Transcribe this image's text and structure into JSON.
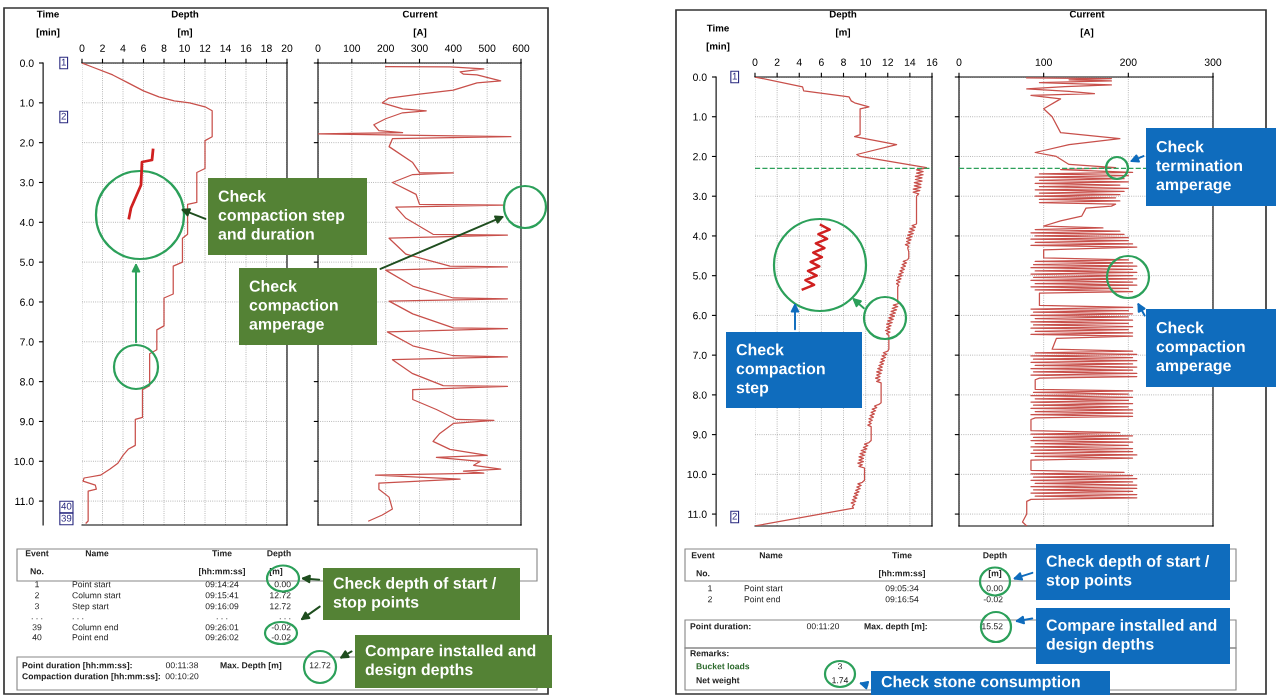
{
  "chart_data": [
    {
      "type": "line",
      "xlabel": "Depth [m]",
      "ylabel": "Time [min]",
      "xlim": [
        0,
        20
      ],
      "xticks": [
        0,
        2,
        4,
        6,
        8,
        10,
        12,
        14,
        16,
        18,
        20
      ],
      "ylim": [
        11.6,
        0
      ],
      "yticks": [
        {
          "value": 0,
          "label": "0.0"
        },
        {
          "value": 1,
          "label": "1.0"
        },
        {
          "value": 2,
          "label": "2.0"
        },
        {
          "value": 3,
          "label": "3.0"
        },
        {
          "value": 4,
          "label": "4.0"
        },
        {
          "value": 5,
          "label": "5.0"
        },
        {
          "value": 6,
          "label": "6.0"
        },
        {
          "value": 7,
          "label": "7.0"
        },
        {
          "value": 8,
          "label": "8.0"
        },
        {
          "value": 9,
          "label": "9.0"
        },
        {
          "value": 10,
          "label": "10.0"
        },
        {
          "value": 11,
          "label": "11.0"
        }
      ],
      "grid": true,
      "series": [
        {
          "color": "#c8504b",
          "x": [
            0,
            1,
            3,
            4.5,
            6,
            7.5,
            9,
            10.5,
            12,
            12.7,
            12.7,
            12,
            12,
            11.2,
            11.2,
            10.3,
            10.3,
            9.8,
            9.8,
            8.9,
            8.9,
            8.0,
            8.0,
            7.3,
            7.3,
            6.6,
            6.6,
            5.9,
            5.9,
            5.2,
            5.2,
            4.5,
            4.0,
            3.5,
            2.7,
            1.8,
            0.2,
            0.1,
            1.3,
            1.4,
            0.6,
            0.6,
            0.4
          ],
          "values": [
            0,
            0.1,
            0.3,
            0.5,
            0.7,
            0.85,
            0.95,
            1.0,
            1.1,
            1.2,
            1.85,
            1.95,
            2.65,
            2.75,
            3.5,
            3.55,
            4.3,
            4.4,
            5.0,
            5.1,
            5.8,
            5.9,
            6.6,
            6.7,
            7.2,
            7.3,
            8.1,
            8.2,
            8.9,
            8.95,
            9.6,
            9.7,
            9.85,
            10.05,
            10.2,
            10.35,
            10.42,
            10.5,
            10.6,
            10.7,
            10.75,
            11.5,
            11.55
          ]
        }
      ],
      "annotations": [
        "1",
        "2",
        "40",
        "39",
        "Check compaction step and duration",
        "Check depth of start / stop points",
        "Compare installed and design depths",
        "Event",
        "Name",
        "Time",
        "Depth",
        "No.",
        "[hh:mm:ss]",
        "[m]",
        "1",
        "Point start",
        "09:14:24",
        "0.00",
        "2",
        "Column start",
        "09:15:41",
        "12.72",
        "3",
        "Step start",
        "09:16:09",
        "12.72",
        ". . .",
        ". . .",
        ". . .",
        ". . .",
        "39",
        "Column end",
        "09:26:01",
        "-0.02",
        "40",
        "Point end",
        "09:26:02",
        "-0.02",
        "Point duration [hh:mm:ss]:",
        "00:11:38",
        "Max. Depth [m]",
        "12.72",
        "Compaction duration [hh:mm:ss]:",
        "00:10:20"
      ]
    },
    {
      "type": "line",
      "xlabel": "Current [A]",
      "xlim": [
        0,
        600
      ],
      "xticks": [
        0,
        100,
        200,
        300,
        400,
        500,
        600
      ],
      "ylim": [
        11.6,
        0
      ],
      "yticks": [
        {
          "value": 0,
          "label": null
        },
        {
          "value": 1,
          "label": null
        },
        {
          "value": 2,
          "label": null
        },
        {
          "value": 3,
          "label": null
        },
        {
          "value": 4,
          "label": null
        },
        {
          "value": 5,
          "label": null
        },
        {
          "value": 6,
          "label": null
        },
        {
          "value": 7,
          "label": null
        },
        {
          "value": 8,
          "label": null
        },
        {
          "value": 9,
          "label": null
        },
        {
          "value": 10,
          "label": null
        },
        {
          "value": 11,
          "label": null
        }
      ],
      "grid": true,
      "tick_labels": "x",
      "series": [
        {
          "color": "#c8504b",
          "x": [
            200,
            390,
            490,
            420,
            430,
            470,
            540,
            470,
            400,
            300,
            210,
            190,
            250,
            320,
            250,
            200,
            165,
            180,
            250,
            0,
            300,
            570,
            220,
            210,
            280,
            300,
            400,
            280,
            220,
            290,
            300,
            550,
            230,
            260,
            340,
            560,
            210,
            260,
            390,
            560,
            200,
            280,
            400,
            560,
            210,
            280,
            400,
            560,
            205,
            280,
            400,
            560,
            220,
            280,
            370,
            560,
            280,
            280,
            350,
            410,
            520,
            400,
            360,
            340,
            390,
            500,
            350,
            480,
            460,
            540,
            430,
            490,
            170,
            420,
            180,
            180,
            210,
            220,
            190,
            150
          ],
          "values": [
            0.09,
            0.1,
            0.15,
            0.22,
            0.28,
            0.3,
            0.45,
            0.5,
            0.68,
            0.78,
            0.88,
            1.0,
            1.15,
            1.2,
            1.25,
            1.4,
            1.55,
            1.7,
            1.75,
            1.78,
            1.82,
            1.85,
            1.9,
            2.1,
            2.5,
            2.75,
            2.76,
            2.8,
            3.0,
            3.3,
            3.55,
            3.57,
            3.62,
            3.9,
            4.3,
            4.32,
            4.4,
            4.8,
            5.1,
            5.12,
            5.2,
            5.6,
            5.9,
            5.92,
            5.98,
            6.3,
            6.65,
            6.67,
            6.75,
            7.1,
            7.35,
            7.38,
            7.45,
            7.8,
            8.1,
            8.12,
            8.2,
            8.45,
            8.7,
            8.95,
            8.97,
            9.05,
            9.3,
            9.5,
            9.7,
            9.85,
            9.9,
            10.0,
            10.1,
            10.2,
            10.25,
            10.3,
            10.35,
            10.45,
            10.55,
            10.7,
            10.9,
            11.2,
            11.35,
            11.5
          ]
        }
      ],
      "annotations": [
        "Check compaction amperage"
      ]
    },
    {
      "type": "line",
      "xlabel": "Depth [m]",
      "ylabel": "Time [min]",
      "xlim": [
        0,
        16
      ],
      "xticks": [
        0,
        2,
        4,
        6,
        8,
        10,
        12,
        14,
        16
      ],
      "ylim": [
        11.3,
        0
      ],
      "yticks": [
        {
          "value": 0,
          "label": "0.0"
        },
        {
          "value": 1,
          "label": "1.0"
        },
        {
          "value": 2,
          "label": "2.0"
        },
        {
          "value": 3,
          "label": "3.0"
        },
        {
          "value": 4,
          "label": "4.0"
        },
        {
          "value": 5,
          "label": "5.0"
        },
        {
          "value": 6,
          "label": "6.0"
        },
        {
          "value": 7,
          "label": "7.0"
        },
        {
          "value": 8,
          "label": "8.0"
        },
        {
          "value": 9,
          "label": "9.0"
        },
        {
          "value": 10,
          "label": "10.0"
        },
        {
          "value": 11,
          "label": "11.0"
        }
      ],
      "grid": true,
      "ref_lines": [
        {
          "axis": "y",
          "value": 2.3,
          "color": "#2ca05a",
          "line_style": "dashed"
        }
      ],
      "series": [
        {
          "color": "#c8504b",
          "x": [
            0,
            4.3,
            4.4,
            8.5,
            8.7,
            9.0,
            10.3,
            9.5,
            9.5,
            9.0,
            12.8,
            9.2,
            9.5,
            15.5,
            15.3,
            14.6,
            15.2,
            14.6,
            15.2,
            14.5,
            15.1,
            14.5,
            15.1,
            14.4,
            15.0,
            14.4,
            15.0,
            14.3,
            14.9,
            14.3,
            14.8,
            14.6,
            14.6,
            14.6,
            14.2,
            14.5,
            14.0,
            14.4,
            13.9,
            14.3,
            13.8,
            14.2,
            13.7,
            14.1,
            13.7,
            14.0,
            13.6,
            13.9,
            13.8,
            13.9,
            13.9,
            13.8,
            13.4,
            13.7,
            13.3,
            13.6,
            13.2,
            13.5,
            13.1,
            13.4,
            13.0,
            13.3,
            12.9,
            13.2,
            12.8,
            13.1,
            12.8,
            13.0,
            12.9,
            12.9,
            12.9,
            13.0,
            12.5,
            12.9,
            12.4,
            12.8,
            12.3,
            12.7,
            12.2,
            12.6,
            12.1,
            12.5,
            12.0,
            12.4,
            11.9,
            12.3,
            11.9,
            12.2,
            11.8,
            12.2,
            11.9,
            12.1,
            12.1,
            12.1,
            12.0,
            11.6,
            11.9,
            11.5,
            11.8,
            11.4,
            11.7,
            11.3,
            11.6,
            11.2,
            11.5,
            11.1,
            11.5,
            11.0,
            11.4,
            11.0,
            11.3,
            10.9,
            11.3,
            11.0,
            11.4,
            11.4,
            11.4,
            11.2,
            10.8,
            11.0,
            10.6,
            10.9,
            10.5,
            10.8,
            10.4,
            10.7,
            10.3,
            10.6,
            10.3,
            10.5,
            10.2,
            10.5,
            10.5,
            10.5,
            10.3,
            9.9,
            10.2,
            9.8,
            10.1,
            9.6,
            10.0,
            9.5,
            9.9,
            9.4,
            9.8,
            9.4,
            9.8,
            9.3,
            9.7,
            9.4,
            9.9,
            9.9,
            9.9,
            9.7,
            9.3,
            9.6,
            9.2,
            9.5,
            9.1,
            9.4,
            9.0,
            9.3,
            8.9,
            9.2,
            8.8,
            9.1,
            8.7,
            9.0,
            8.8,
            8.9,
            0
          ],
          "values": [
            0,
            0.25,
            0.35,
            0.5,
            0.6,
            0.65,
            0.75,
            0.8,
            1.45,
            1.5,
            1.7,
            1.95,
            2.0,
            2.28,
            2.3,
            2.34,
            2.38,
            2.42,
            2.46,
            2.5,
            2.54,
            2.58,
            2.62,
            2.66,
            2.7,
            2.74,
            2.78,
            2.82,
            2.86,
            2.9,
            2.94,
            3.0,
            3.6,
            3.7,
            3.74,
            3.78,
            3.82,
            3.86,
            3.9,
            3.94,
            3.98,
            4.02,
            4.06,
            4.1,
            4.14,
            4.18,
            4.22,
            4.26,
            4.3,
            4.4,
            4.55,
            4.6,
            4.64,
            4.68,
            4.72,
            4.76,
            4.8,
            4.84,
            4.88,
            4.92,
            4.96,
            5.0,
            5.04,
            5.08,
            5.12,
            5.16,
            5.2,
            5.24,
            5.28,
            5.35,
            5.65,
            5.7,
            5.74,
            5.78,
            5.82,
            5.86,
            5.9,
            5.94,
            5.98,
            6.02,
            6.06,
            6.1,
            6.14,
            6.18,
            6.22,
            6.26,
            6.3,
            6.34,
            6.38,
            6.42,
            6.46,
            6.5,
            6.6,
            6.85,
            6.9,
            6.94,
            6.98,
            7.02,
            7.06,
            7.1,
            7.14,
            7.18,
            7.22,
            7.26,
            7.3,
            7.34,
            7.38,
            7.42,
            7.46,
            7.5,
            7.54,
            7.58,
            7.62,
            7.66,
            7.7,
            7.8,
            8.2,
            8.24,
            8.28,
            8.32,
            8.36,
            8.4,
            8.44,
            8.48,
            8.52,
            8.56,
            8.6,
            8.64,
            8.68,
            8.72,
            8.76,
            8.8,
            8.85,
            9.15,
            9.2,
            9.24,
            9.28,
            9.32,
            9.36,
            9.4,
            9.44,
            9.48,
            9.52,
            9.56,
            9.6,
            9.64,
            9.68,
            9.72,
            9.76,
            9.8,
            9.84,
            9.9,
            10.15,
            10.2,
            10.24,
            10.28,
            10.32,
            10.36,
            10.4,
            10.44,
            10.48,
            10.52,
            10.56,
            10.6,
            10.64,
            10.68,
            10.72,
            10.76,
            10.8,
            10.85,
            11.3
          ]
        }
      ],
      "annotations": [
        "1",
        "2",
        "Check compaction step",
        "Check depth of start / stop points",
        "Compare installed and design depths",
        "Check stone consumption",
        "Event",
        "Name",
        "Time",
        "Depth",
        "No.",
        "[hh:mm:ss]",
        "[m]",
        "1",
        "Point start",
        "09:05:34",
        "0.00",
        "2",
        "Point end",
        "09:16:54",
        "-0.02",
        "Point duration:",
        "00:11:20",
        "Max. depth [m]:",
        "15.52",
        "Remarks:",
        "Bucket loads",
        "3",
        "Net weight",
        "1.74"
      ]
    },
    {
      "type": "line",
      "xlabel": "Current [A]",
      "xlim": [
        0,
        300
      ],
      "xticks": [
        0,
        100,
        200,
        300
      ],
      "ylim": [
        11.3,
        0
      ],
      "yticks": [
        {
          "value": 0,
          "label": null
        },
        {
          "value": 1,
          "label": null
        },
        {
          "value": 2,
          "label": null
        },
        {
          "value": 3,
          "label": null
        },
        {
          "value": 4,
          "label": null
        },
        {
          "value": 5,
          "label": null
        },
        {
          "value": 6,
          "label": null
        },
        {
          "value": 7,
          "label": null
        },
        {
          "value": 8,
          "label": null
        },
        {
          "value": 9,
          "label": null
        },
        {
          "value": 10,
          "label": null
        },
        {
          "value": 11,
          "label": null
        }
      ],
      "grid": true,
      "tick_labels": "x",
      "ref_lines": [
        {
          "axis": "y",
          "value": 2.3,
          "color": "#2ca05a",
          "line_style": "dashed"
        }
      ],
      "series": [
        {
          "color": "#c8504b",
          "x": [
            80,
            180,
            130,
            180,
            95,
            180,
            125,
            80,
            130,
            160,
            85,
            120,
            100,
            110,
            120,
            190,
            130,
            90,
            115,
            130,
            185,
            120,
            205,
            95,
            200,
            90,
            195,
            95,
            200,
            90,
            190,
            95,
            200,
            90,
            195,
            95,
            190,
            90,
            185,
            95,
            190,
            95,
            185,
            180,
            150,
            145,
            120,
            100,
            170,
            90,
            190,
            85,
            195,
            90,
            200,
            85,
            200,
            90,
            205,
            85,
            210,
            100,
            100,
            200,
            90,
            205,
            88,
            210,
            85,
            205,
            90,
            210,
            85,
            205,
            88,
            210,
            85,
            205,
            90,
            210,
            85,
            200,
            90,
            205,
            95,
            95,
            95,
            205,
            85,
            200,
            88,
            205,
            85,
            200,
            90,
            205,
            85,
            200,
            88,
            205,
            85,
            200,
            90,
            205,
            85,
            205,
            115,
            110,
            205,
            90,
            210,
            85,
            205,
            88,
            210,
            85,
            205,
            90,
            210,
            85,
            205,
            88,
            210,
            85,
            210,
            95,
            90,
            90,
            205,
            88,
            200,
            85,
            205,
            90,
            200,
            85,
            205,
            88,
            200,
            85,
            205,
            90,
            205,
            85,
            205,
            90,
            85,
            85,
            190,
            85,
            205,
            88,
            200,
            85,
            205,
            90,
            200,
            85,
            205,
            88,
            205,
            85,
            210,
            90,
            205,
            85,
            85,
            195,
            85,
            205,
            88,
            210,
            85,
            205,
            90,
            210,
            85,
            210,
            88,
            205,
            85,
            210,
            90,
            210,
            85,
            80,
            80,
            75,
            80
          ],
          "values": [
            0.02,
            0.04,
            0.07,
            0.1,
            0.14,
            0.2,
            0.24,
            0.3,
            0.36,
            0.42,
            0.46,
            0.55,
            0.8,
            1.0,
            1.4,
            1.55,
            1.7,
            1.9,
            2.0,
            2.2,
            2.28,
            2.33,
            2.4,
            2.44,
            2.48,
            2.52,
            2.56,
            2.6,
            2.64,
            2.68,
            2.72,
            2.76,
            2.8,
            2.84,
            2.88,
            2.92,
            2.96,
            3.0,
            3.04,
            3.08,
            3.12,
            3.16,
            3.2,
            3.25,
            3.3,
            3.5,
            3.62,
            3.75,
            3.8,
            3.84,
            3.88,
            3.92,
            3.96,
            4.0,
            4.04,
            4.08,
            4.12,
            4.16,
            4.2,
            4.24,
            4.28,
            4.35,
            4.55,
            4.6,
            4.64,
            4.68,
            4.72,
            4.76,
            4.8,
            4.84,
            4.88,
            4.92,
            4.96,
            5.0,
            5.04,
            5.08,
            5.12,
            5.16,
            5.2,
            5.24,
            5.28,
            5.32,
            5.36,
            5.4,
            5.44,
            5.5,
            5.75,
            5.8,
            5.84,
            5.88,
            5.92,
            5.96,
            6.0,
            6.04,
            6.08,
            6.12,
            6.16,
            6.2,
            6.24,
            6.28,
            6.32,
            6.36,
            6.4,
            6.44,
            6.48,
            6.52,
            6.58,
            6.85,
            6.9,
            6.94,
            6.98,
            7.02,
            7.06,
            7.1,
            7.14,
            7.18,
            7.22,
            7.26,
            7.3,
            7.34,
            7.38,
            7.42,
            7.46,
            7.5,
            7.54,
            7.58,
            7.62,
            7.86,
            7.9,
            7.94,
            7.98,
            8.02,
            8.06,
            8.1,
            8.14,
            8.18,
            8.22,
            8.26,
            8.3,
            8.34,
            8.38,
            8.42,
            8.46,
            8.5,
            8.54,
            8.58,
            8.62,
            8.9,
            8.95,
            8.99,
            9.03,
            9.07,
            9.11,
            9.15,
            9.19,
            9.23,
            9.27,
            9.31,
            9.35,
            9.39,
            9.43,
            9.47,
            9.51,
            9.55,
            9.59,
            9.64,
            9.9,
            9.95,
            9.99,
            10.03,
            10.07,
            10.11,
            10.15,
            10.19,
            10.23,
            10.27,
            10.31,
            10.35,
            10.39,
            10.43,
            10.47,
            10.51,
            10.55,
            10.59,
            10.63,
            10.68,
            11.0,
            11.2,
            11.3
          ]
        }
      ],
      "annotations": [
        "Check termination amperage",
        "Check compaction amperage"
      ]
    }
  ]
}
